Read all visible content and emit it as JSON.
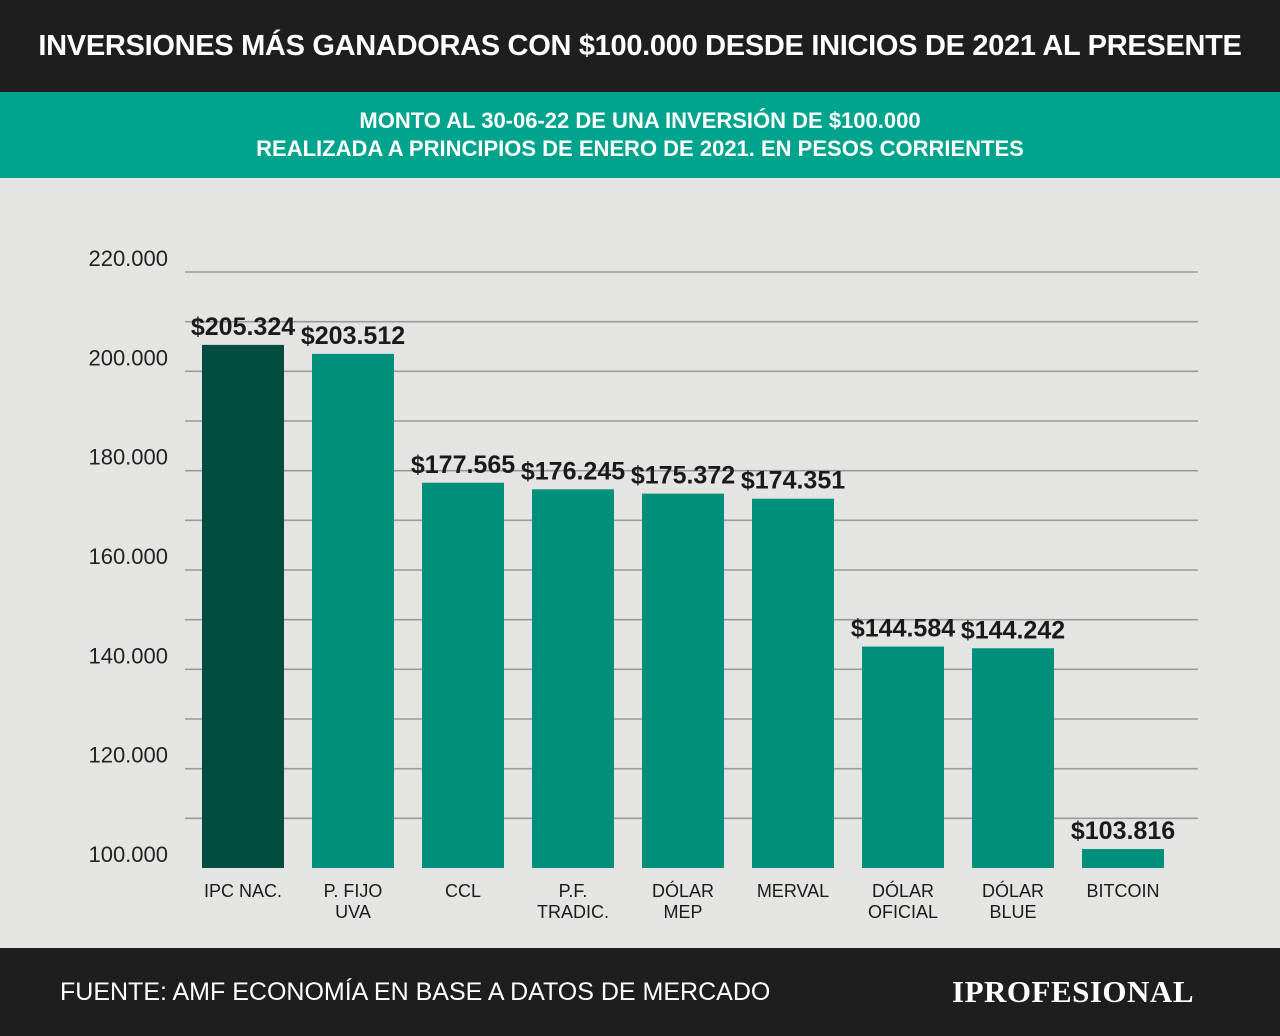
{
  "header": {
    "title": "INVERSIONES MÁS GANADORAS CON $100.000 DESDE INICIOS DE 2021 AL PRESENTE"
  },
  "subheader": {
    "line1": "MONTO AL 30-06-22 DE UNA INVERSIÓN DE $100.000",
    "line2": "REALIZADA A PRINCIPIOS DE ENERO DE 2021. EN PESOS CORRIENTES"
  },
  "footer": {
    "source": "FUENTE: AMF ECONOMÍA EN BASE A DATOS DE MERCADO",
    "logo": "IPROFESIONAL"
  },
  "colors": {
    "header_bg": "#1e1e1e",
    "band_bg": "#00a48c",
    "bar": "#008f7a",
    "bar_highlight": "#004d3f",
    "background": "#e4e5e3",
    "grid": "#9a9a9a"
  },
  "chart_data": {
    "type": "bar",
    "categories": [
      [
        "IPC NAC."
      ],
      [
        "P. FIJO",
        "UVA"
      ],
      [
        "CCL"
      ],
      [
        "P.F.",
        "TRADIC."
      ],
      [
        "DÓLAR",
        "MEP"
      ],
      [
        "MERVAL"
      ],
      [
        "DÓLAR",
        "OFICIAL"
      ],
      [
        "DÓLAR",
        "BLUE"
      ],
      [
        "BITCOIN"
      ]
    ],
    "values": [
      205324,
      203512,
      177565,
      176245,
      175372,
      174351,
      144584,
      144242,
      103816
    ],
    "value_labels": [
      "$205.324",
      "$203.512",
      "$177.565",
      "$176.245",
      "$175.372",
      "$174.351",
      "$144.584",
      "$144.242",
      "$103.816"
    ],
    "highlight_index": 0,
    "y_ticks": [
      100000,
      120000,
      140000,
      160000,
      180000,
      200000,
      220000
    ],
    "y_tick_labels": [
      "100.000",
      "120.000",
      "140.000",
      "160.000",
      "180.000",
      "200.000",
      "220.000"
    ],
    "ylim": [
      100000,
      220000
    ],
    "grid": true,
    "title": "",
    "xlabel": "",
    "ylabel": ""
  }
}
